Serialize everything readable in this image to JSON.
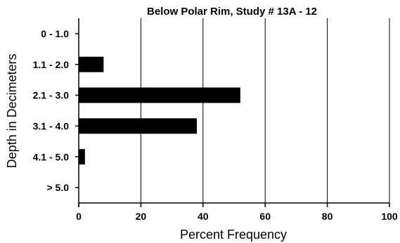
{
  "chart_data": {
    "type": "bar",
    "orientation": "horizontal",
    "title": "Below Polar Rim, Study # 13A - 12",
    "xlabel": "Percent Frequency",
    "ylabel": "Depth in Decimeters",
    "categories": [
      "0 - 1.0",
      "1.1 - 2.0",
      "2.1 - 3.0",
      "3.1 - 4.0",
      "4.1 - 5.0",
      "> 5.0"
    ],
    "values": [
      0,
      8,
      52,
      38,
      2,
      0
    ],
    "xlim": [
      0,
      100
    ],
    "xticks": [
      "0",
      "20",
      "40",
      "60",
      "80",
      "100"
    ],
    "grid": "vertical",
    "bar_color": "#000000"
  }
}
